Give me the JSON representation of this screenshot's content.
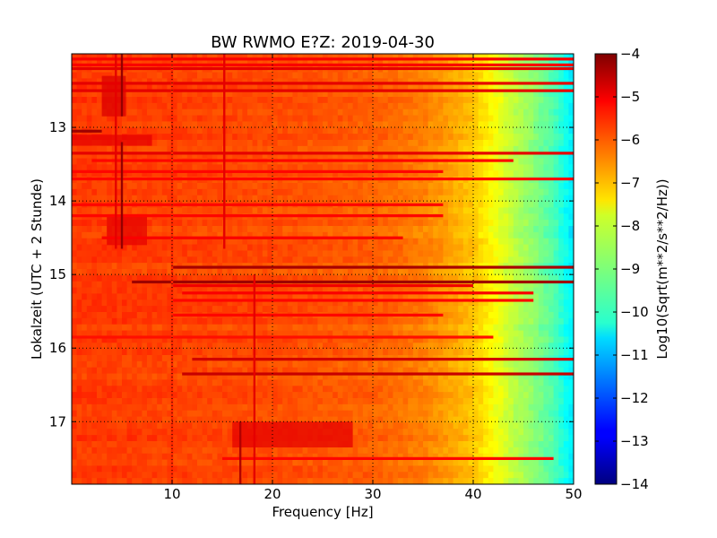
{
  "chart_data": {
    "type": "heatmap",
    "title": "BW RWMO E?Z: 2019-04-30",
    "xlabel": "Frequency [Hz]",
    "ylabel": "Lokalzeit (UTC + 2 Stunde)",
    "colorbar_label": "Log10(Sqrt(m**2/s**2/Hz))",
    "xlim": [
      0,
      50
    ],
    "ylim": [
      12.0,
      17.85
    ],
    "y_inverted": true,
    "x_ticks": [
      10,
      20,
      30,
      40,
      50
    ],
    "y_ticks": [
      13,
      14,
      15,
      16,
      17
    ],
    "colorbar_range": [
      -14,
      -4
    ],
    "colorbar_ticks": [
      -4,
      -5,
      -6,
      -7,
      -8,
      -9,
      -10,
      -11,
      -12,
      -13,
      -14
    ],
    "colormap": "jet",
    "grid": true,
    "background_level_by_frequency": [
      {
        "f": 0,
        "v": -5.8
      },
      {
        "f": 10,
        "v": -5.9
      },
      {
        "f": 20,
        "v": -6.0
      },
      {
        "f": 30,
        "v": -6.2
      },
      {
        "f": 35,
        "v": -6.5
      },
      {
        "f": 38,
        "v": -6.9
      },
      {
        "f": 40,
        "v": -7.2
      },
      {
        "f": 42,
        "v": -7.8
      },
      {
        "f": 44,
        "v": -8.4
      },
      {
        "f": 46,
        "v": -8.9
      },
      {
        "f": 48,
        "v": -9.5
      },
      {
        "f": 50,
        "v": -10.5
      }
    ],
    "horizontal_bands": [
      {
        "t": 12.07,
        "f_from": 0,
        "f_to": 50,
        "v": -5.2
      },
      {
        "t": 12.15,
        "f_from": 0,
        "f_to": 50,
        "v": -5.2
      },
      {
        "t": 12.2,
        "f_from": 0,
        "f_to": 50,
        "v": -5.0
      },
      {
        "t": 12.4,
        "f_from": 0,
        "f_to": 50,
        "v": -5.0
      },
      {
        "t": 12.5,
        "f_from": 0,
        "f_to": 50,
        "v": -5.0
      },
      {
        "t": 13.05,
        "f_from": 0,
        "f_to": 3,
        "v": -4.3
      },
      {
        "t": 13.35,
        "f_from": 0,
        "f_to": 50,
        "v": -5.0
      },
      {
        "t": 13.45,
        "f_from": 2,
        "f_to": 44,
        "v": -5.3
      },
      {
        "t": 13.6,
        "f_from": 0,
        "f_to": 37,
        "v": -5.3
      },
      {
        "t": 13.7,
        "f_from": 0,
        "f_to": 50,
        "v": -5.3
      },
      {
        "t": 14.05,
        "f_from": 0,
        "f_to": 37,
        "v": -5.3
      },
      {
        "t": 14.2,
        "f_from": 0,
        "f_to": 37,
        "v": -5.3
      },
      {
        "t": 14.5,
        "f_from": 3,
        "f_to": 33,
        "v": -5.2
      },
      {
        "t": 14.9,
        "f_from": 10,
        "f_to": 50,
        "v": -4.4
      },
      {
        "t": 15.1,
        "f_from": 6,
        "f_to": 50,
        "v": -4.3
      },
      {
        "t": 15.15,
        "f_from": 10,
        "f_to": 40,
        "v": -5.1
      },
      {
        "t": 15.25,
        "f_from": 11,
        "f_to": 46,
        "v": -5.2
      },
      {
        "t": 15.35,
        "f_from": 10,
        "f_to": 46,
        "v": -5.3
      },
      {
        "t": 15.55,
        "f_from": 10,
        "f_to": 37,
        "v": -5.3
      },
      {
        "t": 15.85,
        "f_from": 0,
        "f_to": 42,
        "v": -5.4
      },
      {
        "t": 16.15,
        "f_from": 12,
        "f_to": 50,
        "v": -4.8
      },
      {
        "t": 16.35,
        "f_from": 11,
        "f_to": 50,
        "v": -4.7
      },
      {
        "t": 17.5,
        "f_from": 15,
        "f_to": 48,
        "v": -5.3
      }
    ],
    "vertical_features": [
      {
        "f": 5.0,
        "t_from": 12.0,
        "t_to": 12.85,
        "v": -4.2
      },
      {
        "f": 5.0,
        "t_from": 13.2,
        "t_to": 14.65,
        "v": -4.2
      },
      {
        "f": 4.4,
        "t_from": 12.0,
        "t_to": 14.65,
        "v": -5.0
      },
      {
        "f": 15.2,
        "t_from": 12.0,
        "t_to": 14.65,
        "v": -5.0
      },
      {
        "f": 10.0,
        "t_from": 12.0,
        "t_to": 17.85,
        "v": -5.6
      },
      {
        "f": 18.2,
        "t_from": 15.0,
        "t_to": 17.85,
        "v": -5.0
      },
      {
        "f": 16.8,
        "t_from": 17.0,
        "t_to": 17.85,
        "v": -4.5
      }
    ],
    "patches": [
      {
        "f_from": 3.0,
        "f_to": 5.4,
        "t_from": 12.3,
        "t_to": 12.85,
        "v": -4.9
      },
      {
        "f_from": 3.5,
        "f_to": 7.5,
        "t_from": 14.2,
        "t_to": 14.6,
        "v": -5.0
      },
      {
        "f_from": 16,
        "f_to": 28,
        "t_from": 17.0,
        "t_to": 17.35,
        "v": -5.0
      },
      {
        "f_from": 0,
        "f_to": 8,
        "t_from": 13.1,
        "t_to": 13.25,
        "v": -5.0
      }
    ]
  }
}
